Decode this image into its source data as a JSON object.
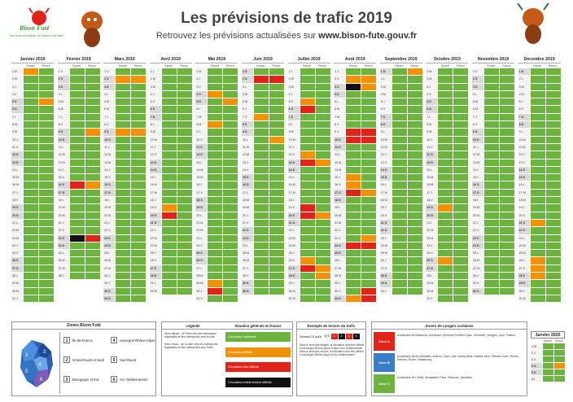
{
  "header": {
    "logo_name": "Bison Futé",
    "logo_tagline": "vos bons vos trajets, du départ à l'arrivée",
    "title": "Les prévisions de trafic 2019",
    "subtitle_prefix": "Retrouvez les prévisions actualisées sur ",
    "subtitle_url": "www.bison-fute.gouv.fr"
  },
  "calendar": {
    "depart_label": "Départ",
    "retour_label": "Retour",
    "months": [
      {
        "name": "Janvier 2019",
        "start_dow": 1,
        "days": 31,
        "marks": {
          "1": [
            "o",
            ""
          ],
          "5": [
            "",
            "o"
          ]
        }
      },
      {
        "name": "Février 2019",
        "start_dow": 4,
        "days": 28,
        "marks": {
          "9": [
            "",
            "o"
          ],
          "16": [
            "r",
            "o"
          ],
          "23": [
            "b",
            "r"
          ],
          "2": [
            "",
            ""
          ]
        }
      },
      {
        "name": "Mars 2019",
        "start_dow": 4,
        "days": 31,
        "marks": {
          "2": [
            "o",
            "o"
          ],
          "9": [
            "o",
            "o"
          ]
        }
      },
      {
        "name": "Avril 2019",
        "start_dow": 0,
        "days": 30,
        "marks": {
          "6": [
            "",
            ""
          ],
          "13": [
            "",
            ""
          ],
          "19": [
            "o",
            ""
          ],
          "20": [
            "r",
            ""
          ]
        }
      },
      {
        "name": "Mai 2019",
        "start_dow": 2,
        "days": 31,
        "marks": {
          "4": [
            "o",
            ""
          ],
          "5": [
            "",
            "o"
          ],
          "8": [
            "o",
            ""
          ],
          "29": [
            "o",
            ""
          ],
          "30": [
            "r",
            ""
          ]
        }
      },
      {
        "name": "Juin 2019",
        "start_dow": 5,
        "days": 30,
        "marks": {
          "1": [
            "",
            ""
          ],
          "2": [
            "r",
            "r"
          ],
          "7": [
            "o",
            ""
          ],
          "10": [
            "",
            "o"
          ]
        }
      },
      {
        "name": "Juillet 2019",
        "start_dow": 0,
        "days": 31,
        "marks": {
          "5": [
            "o",
            ""
          ],
          "6": [
            "r",
            ""
          ],
          "12": [
            "o",
            ""
          ],
          "13": [
            "r",
            "o"
          ],
          "19": [
            "r",
            ""
          ],
          "20": [
            "r",
            "o"
          ],
          "26": [
            "o",
            ""
          ],
          "27": [
            "r",
            "o"
          ],
          "28": [
            "",
            "o"
          ]
        }
      },
      {
        "name": "Août 2019",
        "start_dow": 3,
        "days": 31,
        "marks": {
          "2": [
            "o",
            "o"
          ],
          "3": [
            "b",
            "o"
          ],
          "9": [
            "r",
            "r"
          ],
          "10": [
            "r",
            "r"
          ],
          "15": [
            "o",
            ""
          ],
          "16": [
            "o",
            ""
          ],
          "17": [
            "r",
            "o"
          ],
          "23": [
            "",
            "o"
          ],
          "24": [
            "r",
            "r"
          ],
          "30": [
            "",
            "r"
          ],
          "31": [
            "o",
            "r"
          ]
        }
      },
      {
        "name": "Septembre 2019",
        "start_dow": 6,
        "days": 30,
        "marks": {
          "1": [
            "",
            "o"
          ]
        }
      },
      {
        "name": "Octobre 2019",
        "start_dow": 1,
        "days": 31,
        "marks": {
          "19": [
            "o",
            ""
          ],
          "26": [
            "o",
            ""
          ],
          "2": [
            "",
            ""
          ]
        }
      },
      {
        "name": "Novembre 2019",
        "start_dow": 4,
        "days": 30,
        "marks": {
          "1": [
            "",
            ""
          ],
          "10": [
            "",
            ""
          ]
        }
      },
      {
        "name": "Décembre 2019",
        "start_dow": 6,
        "days": 31,
        "marks": {
          "21": [
            "o",
            ""
          ],
          "26": [
            "o",
            ""
          ],
          "27": [
            "o",
            ""
          ],
          "28": [
            "o",
            ""
          ]
        }
      }
    ],
    "day_letters": [
      "L",
      "M",
      "M",
      "J",
      "V",
      "S",
      "D"
    ]
  },
  "jan2020": {
    "name": "Janvier 2020",
    "start_dow": 2,
    "days": 6,
    "marks": {
      "4": [
        "",
        "o"
      ]
    }
  },
  "zones_box": {
    "title": "Zones Bison Futé",
    "items": [
      {
        "num": "1",
        "label": "Île-de-France"
      },
      {
        "num": "2",
        "label": "Grand-Ouest et Nord"
      },
      {
        "num": "3",
        "label": "Bourgogne et Est"
      },
      {
        "num": "4",
        "label": "Auvergne-Rhône-Alpes"
      },
      {
        "num": "5",
        "label": "Sud-Ouest"
      },
      {
        "num": "6",
        "label": "Arc méditerranéen"
      }
    ]
  },
  "legend_box": {
    "title": "Légende",
    "situation_title": "Situation générale en France",
    "text_departs": "Sens départ : de Paris vers les métropoles régionales et des métropoles vers la côte",
    "text_retours": "Sens retour : de la côte vers les métropoles régionales et des métropoles vers Paris",
    "levels": [
      {
        "label": "Circulation habituelle",
        "color": "#6db33f"
      },
      {
        "label": "Circulation difficile",
        "color": "#f39200"
      },
      {
        "label": "Circulation très difficile",
        "color": "#e2231a"
      },
      {
        "label": "Circulation extrêmement difficile",
        "color": "#111111"
      }
    ]
  },
  "example_box": {
    "title": "Exemple de lecture du trafic",
    "day_label": "Samedi 10 août",
    "day_short": "10 S",
    "text": "Dans le sens des départs, la circulation sera très difficile en Auvergne-Rhône-Alpes et dans l'Arc méditerranéen. Dans le sens des retours, la circulation sera très difficile en Auvergne-Rhône-Alpes et Arc méditerranéen."
  },
  "holidays_box": {
    "title": "Zones de congés scolaires",
    "zones": [
      {
        "tag": "Zone A",
        "color": "#e2231a",
        "text": "Académies de Besançon, Bordeaux, Clermont-Ferrand, Dijon, Grenoble, Limoges, Lyon, Poitiers."
      },
      {
        "tag": "Zone B",
        "color": "#3a7dc9",
        "text": "Académies de Aix-Marseille, Amiens, Caen, Lille, Nancy-Metz, Nantes, Nice, Orléans-Tours, Reims, Rennes, Rouen, Strasbourg."
      },
      {
        "tag": "Zone C",
        "color": "#6db33f",
        "text": "Académies de Créteil, Montpellier, Paris, Toulouse, Versailles."
      }
    ]
  }
}
